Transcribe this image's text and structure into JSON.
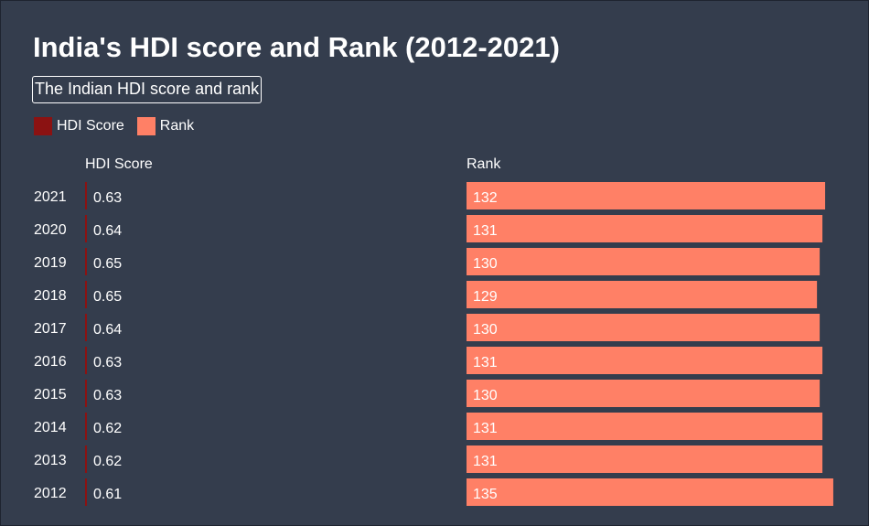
{
  "title": "India's HDI score and Rank (2012-2021)",
  "subtitle": "The Indian HDI score and rank",
  "colors": {
    "background": "#343d4d",
    "hdi": "#8b1212",
    "rank": "#ff8066",
    "text": "#ffffff"
  },
  "legend": [
    {
      "label": "HDI Score",
      "color": "#8b1212"
    },
    {
      "label": "Rank",
      "color": "#ff8066"
    }
  ],
  "chart_data": {
    "type": "bar",
    "title": "India's HDI score and Rank (2012-2021)",
    "subtitle": "The Indian HDI score and rank",
    "legend_position": "top-left",
    "categories": [
      "2021",
      "2020",
      "2019",
      "2018",
      "2017",
      "2016",
      "2015",
      "2014",
      "2013",
      "2012"
    ],
    "series": [
      {
        "name": "HDI Score",
        "color": "#8b1212",
        "values": [
          0.63,
          0.64,
          0.65,
          0.65,
          0.64,
          0.63,
          0.63,
          0.62,
          0.62,
          0.61
        ]
      },
      {
        "name": "Rank",
        "color": "#ff8066",
        "values": [
          132,
          131,
          130,
          129,
          130,
          131,
          130,
          131,
          131,
          135
        ]
      }
    ],
    "column_headers": [
      "HDI Score",
      "Rank"
    ]
  }
}
